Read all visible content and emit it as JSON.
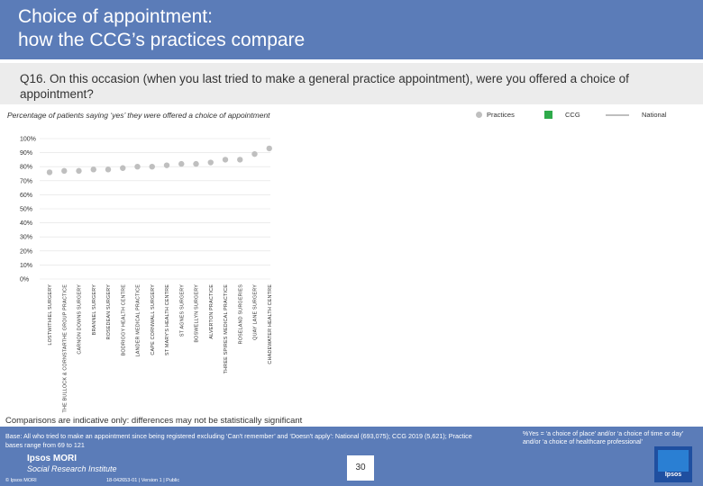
{
  "header": {
    "title": "Choice of appointment:\nhow the CCG’s practices compare"
  },
  "question": {
    "text": "Q16. On this occasion (when you last tried to make a general practice appointment), were you offered a choice of appointment?"
  },
  "chart_subtitle": "Percentage of patients saying ‘yes’ they were offered a choice of appointment",
  "legend": {
    "practices": "Practices",
    "ccg": "CCG",
    "national": "National"
  },
  "colors": {
    "header": "#5b7cb8",
    "points": "#bfbfbf",
    "ccg": "#2eaa4a",
    "national": "#bfbfbf",
    "gridline": "#e0e0e0"
  },
  "chart_data": {
    "type": "scatter",
    "title": "Percentage of patients saying ‘yes’ they were offered a choice of appointment",
    "ylabel": "",
    "xlabel": "",
    "ylim": [
      0,
      100
    ],
    "yticks": [
      "0%",
      "10%",
      "20%",
      "30%",
      "40%",
      "50%",
      "60%",
      "70%",
      "80%",
      "90%",
      "100%"
    ],
    "grid": true,
    "legend_position": "top-right",
    "categories": [
      "LOSTWITHIEL SURGERY",
      "THE BULLOCK & CORNSTARTHE GROUP PRACTICE",
      "CARNON DOWNS SURGERY",
      "BRANNEL SURGERY",
      "ROSEDEAN SURGERY",
      "BODRIGGY HEALTH CENTRE",
      "LANDER MEDICAL PRACTICE",
      "CAPE CORNWALL SURGERY",
      "ST MARY'S HEALTH CENTRE",
      "ST AGNES SURGERY",
      "BOSWELLYN SURGERY",
      "ALVERTON PRACTICE",
      "THREE SPIRES MEDICAL PRACTICE",
      "ROSELAND SURGERIES",
      "QUAY LANE SURGERY",
      "CHADEWATER HEALTH CENTRE"
    ],
    "series": [
      {
        "name": "Practices",
        "values": [
          76,
          77,
          77,
          78,
          78,
          79,
          80,
          80,
          81,
          82,
          82,
          83,
          85,
          85,
          89,
          93
        ]
      }
    ]
  },
  "disclaimer": "Comparisons are indicative only: differences may not be statistically significant",
  "footer": {
    "base": "Base: All who tried to make an appointment since being registered excluding ‘Can't remember’ and ‘Doesn't apply’: National (693,075); CCG 2019 (5,621); Practice bases range from 69 to 121",
    "note": "%Yes = ‘a choice of place’ and/or ‘a choice of time or day’ and/or ‘a choice of healthcare professional’",
    "logo": "Ipsos MORI",
    "logo_sub": "Social Research Institute",
    "copyright": "© Ipsos MORI",
    "jobref": "18-042653-01 | Version 1 | Public",
    "page": "30",
    "badge": "Ipsos"
  }
}
